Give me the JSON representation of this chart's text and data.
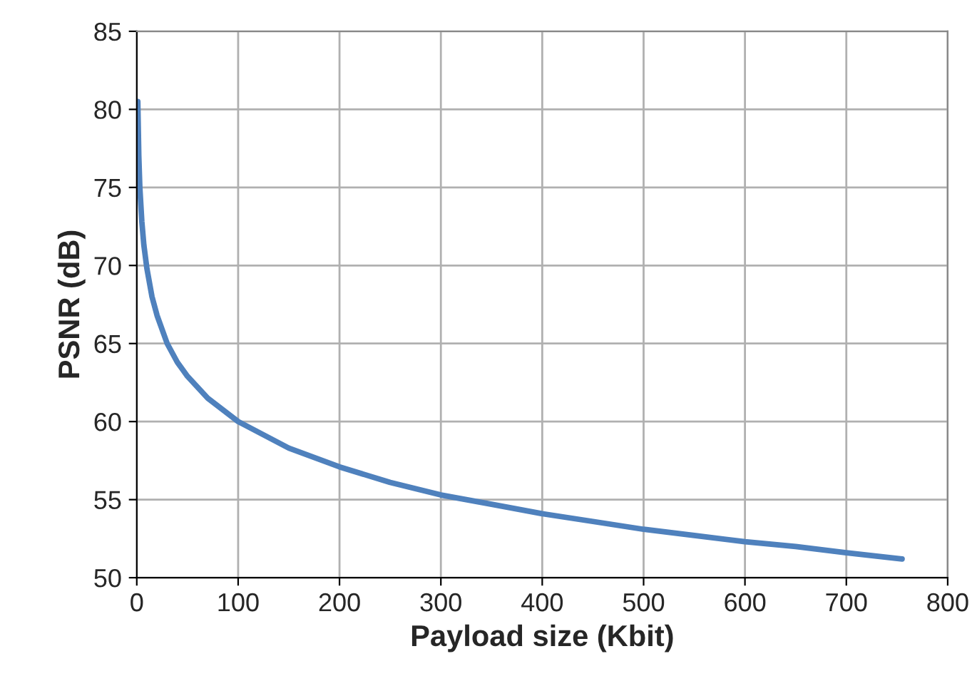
{
  "chart_data": {
    "type": "line",
    "xlabel": "Payload size (Kbit)",
    "ylabel": "PSNR (dB)",
    "x": [
      1,
      2,
      3,
      5,
      7,
      10,
      15,
      20,
      30,
      40,
      50,
      70,
      100,
      150,
      200,
      250,
      300,
      350,
      400,
      450,
      500,
      550,
      600,
      650,
      700,
      755
    ],
    "series": [
      {
        "color": "#4f81bd",
        "values": [
          80.5,
          77,
          75,
          72.8,
          71.3,
          69.8,
          68,
          66.8,
          65,
          63.8,
          62.9,
          61.5,
          60,
          58.3,
          57.1,
          56.1,
          55.3,
          54.7,
          54.1,
          53.6,
          53.1,
          52.7,
          52.3,
          52,
          51.6,
          51.2
        ]
      }
    ],
    "xlim": [
      0,
      800
    ],
    "xticks": [
      0,
      100,
      200,
      300,
      400,
      500,
      600,
      700,
      800
    ],
    "ylim": [
      50,
      85
    ],
    "yticks": [
      50,
      55,
      60,
      65,
      70,
      75,
      80,
      85
    ],
    "grid": true,
    "marker": "none",
    "line_style": "solid"
  }
}
